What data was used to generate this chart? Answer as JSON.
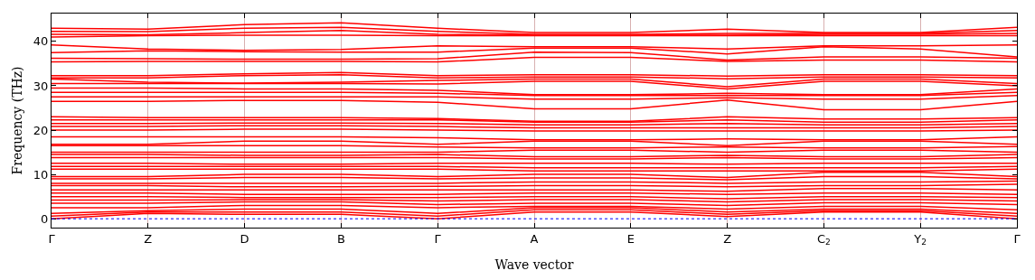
{
  "chart_data": {
    "type": "line",
    "xlabel": "Wave vector",
    "ylabel": "Frequency (THz)",
    "categories": [
      "Γ",
      "Z",
      "D",
      "B",
      "Γ",
      "A",
      "E",
      "Z",
      "C$_{2}$",
      "Y$_{2}$",
      "Γ"
    ],
    "ylim": [
      -2,
      46.3
    ],
    "yticks": [
      0,
      10,
      20,
      30,
      40
    ],
    "grid": "x",
    "ref_lines": [
      {
        "axis": "y",
        "value": 0,
        "color": "#0000ff",
        "line_style": "dotted"
      }
    ],
    "series": [
      {
        "color": "#ff0000",
        "values": [
          43.0,
          42.8,
          43.8,
          44.2,
          43.0,
          42.0,
          42.0,
          42.8,
          42.0,
          42.0,
          43.2
        ]
      },
      {
        "color": "#ff0000",
        "values": [
          42.3,
          42.2,
          43.0,
          43.2,
          42.3,
          41.6,
          41.6,
          41.8,
          41.8,
          41.8,
          42.5
        ]
      },
      {
        "color": "#ff0000",
        "values": [
          41.6,
          41.5,
          42.0,
          42.5,
          41.6,
          41.4,
          41.4,
          41.4,
          41.6,
          41.6,
          41.8
        ]
      },
      {
        "color": "#ff0000",
        "values": [
          41.0,
          41.3,
          41.4,
          41.4,
          41.3,
          41.3,
          41.3,
          41.3,
          41.3,
          41.3,
          41.3
        ]
      },
      {
        "color": "#ff0000",
        "values": [
          39.2,
          38.3,
          38.0,
          38.2,
          39.0,
          38.8,
          38.8,
          38.3,
          39.0,
          39.0,
          39.2
        ]
      },
      {
        "color": "#ff0000",
        "values": [
          37.5,
          37.9,
          37.7,
          37.6,
          37.6,
          38.5,
          38.5,
          37.2,
          38.8,
          38.3,
          36.5
        ]
      },
      {
        "color": "#ff0000",
        "values": [
          36.2,
          36.1,
          36.0,
          36.0,
          36.1,
          37.6,
          37.5,
          35.8,
          36.5,
          36.5,
          36.2
        ]
      },
      {
        "color": "#ff0000",
        "values": [
          35.4,
          35.5,
          35.5,
          35.5,
          35.4,
          36.4,
          36.4,
          35.5,
          35.8,
          35.8,
          35.4
        ]
      },
      {
        "color": "#ff0000",
        "values": [
          32.3,
          32.3,
          32.7,
          33.0,
          32.3,
          32.5,
          32.5,
          32.2,
          32.5,
          32.5,
          32.3
        ]
      },
      {
        "color": "#ff0000",
        "values": [
          31.8,
          31.8,
          32.3,
          32.5,
          31.8,
          32.0,
          32.0,
          31.6,
          32.0,
          32.0,
          31.8
        ]
      },
      {
        "color": "#ff0000",
        "values": [
          31.5,
          30.8,
          30.6,
          30.8,
          31.2,
          31.5,
          31.5,
          29.8,
          31.5,
          31.5,
          30.5
        ]
      },
      {
        "color": "#ff0000",
        "values": [
          30.5,
          30.5,
          30.5,
          30.5,
          30.4,
          31.0,
          31.0,
          29.3,
          31.0,
          31.0,
          30.0
        ]
      },
      {
        "color": "#ff0000",
        "values": [
          29.5,
          29.5,
          29.3,
          29.3,
          29.0,
          28.0,
          28.0,
          28.3,
          28.0,
          28.0,
          29.3
        ]
      },
      {
        "color": "#ff0000",
        "values": [
          28.5,
          28.5,
          28.5,
          28.5,
          28.3,
          27.8,
          27.8,
          27.8,
          27.8,
          27.8,
          28.5
        ]
      },
      {
        "color": "#ff0000",
        "values": [
          27.5,
          27.5,
          27.5,
          27.5,
          27.5,
          27.0,
          27.0,
          27.3,
          27.0,
          27.0,
          27.8
        ]
      },
      {
        "color": "#ff0000",
        "values": [
          26.5,
          26.5,
          26.7,
          26.7,
          26.3,
          24.8,
          24.8,
          26.8,
          24.6,
          24.6,
          26.5
        ]
      },
      {
        "color": "#ff0000",
        "values": [
          23.0,
          22.8,
          22.8,
          22.8,
          22.6,
          22.0,
          22.0,
          23.0,
          22.5,
          22.5,
          22.8
        ]
      },
      {
        "color": "#ff0000",
        "values": [
          22.3,
          22.3,
          22.3,
          22.3,
          22.3,
          21.8,
          21.8,
          22.3,
          21.8,
          21.8,
          22.3
        ]
      },
      {
        "color": "#ff0000",
        "values": [
          21.5,
          21.5,
          21.6,
          21.6,
          21.5,
          21.2,
          21.2,
          21.5,
          21.2,
          21.2,
          21.5
        ]
      },
      {
        "color": "#ff0000",
        "values": [
          20.8,
          20.8,
          21.0,
          21.0,
          20.8,
          20.5,
          20.5,
          20.5,
          20.5,
          20.5,
          20.8
        ]
      },
      {
        "color": "#ff0000",
        "values": [
          20.0,
          20.0,
          20.2,
          20.2,
          20.0,
          19.8,
          19.8,
          19.8,
          19.8,
          19.8,
          20.0
        ]
      },
      {
        "color": "#ff0000",
        "values": [
          18.5,
          18.5,
          18.5,
          18.5,
          18.3,
          17.8,
          17.8,
          18.0,
          17.8,
          17.8,
          18.5
        ]
      },
      {
        "color": "#ff0000",
        "values": [
          16.8,
          16.8,
          17.5,
          17.5,
          16.8,
          17.5,
          17.5,
          16.5,
          17.5,
          17.5,
          16.8
        ]
      },
      {
        "color": "#ff0000",
        "values": [
          16.5,
          16.5,
          16.5,
          16.5,
          16.2,
          16.0,
          16.0,
          16.2,
          16.0,
          16.0,
          16.3
        ]
      },
      {
        "color": "#ff0000",
        "values": [
          15.0,
          15.0,
          15.0,
          15.0,
          15.0,
          15.5,
          15.5,
          15.0,
          15.5,
          15.5,
          15.0
        ]
      },
      {
        "color": "#ff0000",
        "values": [
          14.5,
          14.5,
          14.3,
          14.3,
          14.5,
          14.0,
          14.0,
          14.3,
          14.0,
          14.0,
          14.5
        ]
      },
      {
        "color": "#ff0000",
        "values": [
          13.8,
          13.8,
          13.8,
          13.8,
          13.8,
          13.5,
          13.5,
          13.8,
          13.5,
          13.5,
          13.8
        ]
      },
      {
        "color": "#ff0000",
        "values": [
          12.5,
          12.5,
          12.3,
          12.3,
          12.5,
          12.5,
          12.5,
          12.3,
          12.5,
          12.5,
          12.5
        ]
      },
      {
        "color": "#ff0000",
        "values": [
          11.8,
          11.8,
          11.8,
          11.8,
          11.8,
          11.5,
          11.5,
          11.5,
          11.5,
          11.5,
          11.8
        ]
      },
      {
        "color": "#ff0000",
        "values": [
          11.2,
          11.2,
          11.2,
          11.2,
          11.2,
          10.8,
          10.8,
          10.8,
          10.8,
          10.8,
          11.2
        ]
      },
      {
        "color": "#ff0000",
        "values": [
          9.5,
          9.5,
          10.0,
          10.0,
          9.5,
          10.0,
          10.0,
          9.3,
          10.5,
          10.5,
          9.5
        ]
      },
      {
        "color": "#ff0000",
        "values": [
          9.0,
          9.0,
          9.3,
          9.3,
          9.0,
          9.2,
          9.2,
          8.8,
          9.5,
          9.5,
          9.0
        ]
      },
      {
        "color": "#ff0000",
        "values": [
          8.0,
          8.0,
          8.0,
          8.0,
          8.0,
          8.3,
          8.3,
          8.0,
          8.3,
          8.3,
          8.5
        ]
      },
      {
        "color": "#ff0000",
        "values": [
          7.5,
          7.5,
          7.2,
          7.2,
          7.3,
          7.5,
          7.5,
          7.2,
          7.5,
          7.5,
          7.8
        ]
      },
      {
        "color": "#ff0000",
        "values": [
          6.5,
          6.5,
          6.5,
          6.5,
          6.5,
          6.5,
          6.5,
          6.2,
          6.8,
          6.8,
          6.5
        ]
      },
      {
        "color": "#ff0000",
        "values": [
          5.8,
          5.8,
          5.5,
          5.5,
          5.5,
          5.8,
          5.8,
          5.5,
          5.8,
          5.8,
          5.5
        ]
      },
      {
        "color": "#ff0000",
        "values": [
          5.0,
          5.0,
          4.8,
          4.8,
          4.8,
          5.0,
          5.0,
          4.5,
          5.0,
          5.0,
          4.8
        ]
      },
      {
        "color": "#ff0000",
        "values": [
          4.2,
          4.2,
          4.3,
          4.3,
          4.0,
          4.3,
          4.3,
          3.8,
          4.3,
          4.3,
          4.0
        ]
      },
      {
        "color": "#ff0000",
        "values": [
          3.5,
          3.5,
          3.8,
          3.8,
          3.2,
          3.5,
          3.5,
          3.0,
          3.6,
          3.6,
          3.2
        ]
      },
      {
        "color": "#ff0000",
        "values": [
          2.5,
          2.5,
          3.0,
          3.0,
          2.5,
          2.8,
          2.8,
          2.2,
          2.8,
          2.8,
          2.0
        ]
      },
      {
        "color": "#ff0000",
        "values": [
          1.2,
          1.8,
          2.2,
          2.2,
          1.2,
          2.5,
          2.5,
          1.5,
          2.2,
          2.2,
          1.2
        ]
      },
      {
        "color": "#ff0000",
        "values": [
          0.6,
          1.5,
          1.5,
          1.5,
          0.6,
          2.0,
          2.0,
          1.0,
          1.8,
          1.8,
          0.6
        ]
      },
      {
        "color": "#ff0000",
        "values": [
          0,
          1.2,
          1.0,
          1.0,
          0,
          1.5,
          1.5,
          0.5,
          1.5,
          1.5,
          0
        ]
      }
    ]
  }
}
